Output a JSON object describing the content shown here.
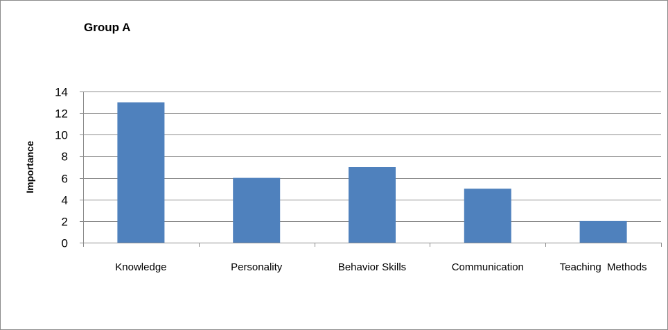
{
  "chart_data": {
    "type": "bar",
    "title": "Group A",
    "xlabel": "",
    "ylabel": "Importance",
    "categories": [
      "Knowledge",
      "Personality",
      "Behavior Skills",
      "Communication",
      "Teaching  Methods"
    ],
    "values": [
      13,
      6,
      7,
      5,
      2
    ],
    "ylim": [
      0,
      14
    ],
    "yticks": [
      0,
      2,
      4,
      6,
      8,
      10,
      12,
      14
    ],
    "grid": true,
    "legend": "none",
    "colors": {
      "bar": "#4f81bd",
      "grid": "#8c8c8c",
      "axis": "#8c8c8c",
      "frame": "#8a8a8a"
    }
  }
}
